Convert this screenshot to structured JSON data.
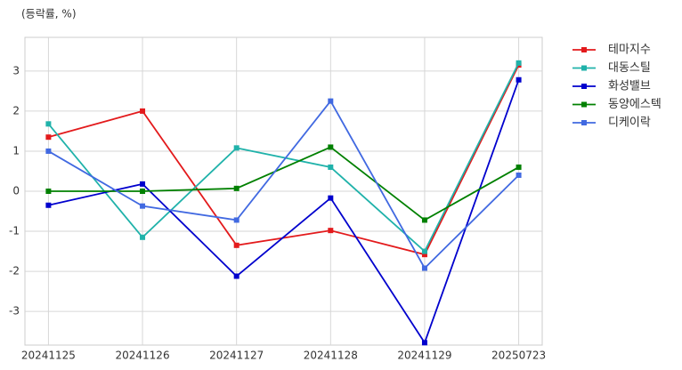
{
  "chart_data": {
    "type": "line",
    "y_label": "(등락률, %)",
    "categories": [
      "20241125",
      "20241126",
      "20241127",
      "20241128",
      "20241129",
      "20250723"
    ],
    "series": [
      {
        "name": "테마지수",
        "color": "#e31a1c",
        "values": [
          1.35,
          2.0,
          -1.35,
          -0.98,
          -1.58,
          3.15
        ]
      },
      {
        "name": "대동스틸",
        "color": "#20b2aa",
        "values": [
          1.68,
          -1.15,
          1.08,
          0.6,
          -1.5,
          3.2
        ]
      },
      {
        "name": "화성밸브",
        "color": "#0000cd",
        "values": [
          -0.35,
          0.18,
          -2.12,
          -0.17,
          -3.78,
          2.78
        ]
      },
      {
        "name": "동양에스텍",
        "color": "#008000",
        "values": [
          0.0,
          0.0,
          0.07,
          1.1,
          -0.72,
          0.6
        ]
      },
      {
        "name": "디케이락",
        "color": "#4169e1",
        "values": [
          1.0,
          -0.37,
          -0.72,
          2.25,
          -1.92,
          0.4
        ]
      }
    ],
    "ylim": [
      -3.84,
      3.84
    ],
    "yticks": [
      -3,
      -2,
      -1,
      0,
      1,
      2,
      3
    ],
    "grid": true,
    "legend": "outside-right"
  }
}
